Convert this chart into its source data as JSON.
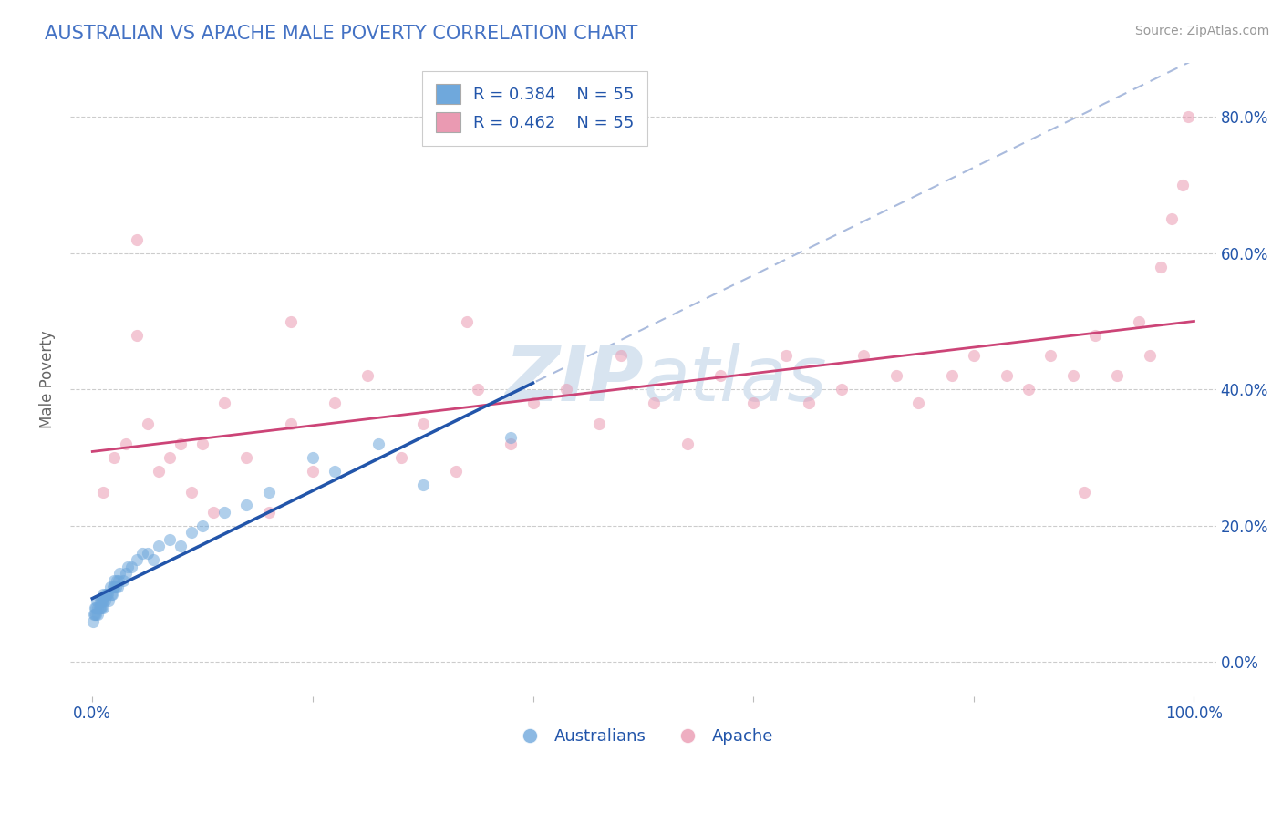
{
  "title": "AUSTRALIAN VS APACHE MALE POVERTY CORRELATION CHART",
  "source": "Source: ZipAtlas.com",
  "ylabel": "Male Poverty",
  "x_ticks": [
    0.0,
    20.0,
    40.0,
    60.0,
    80.0,
    100.0
  ],
  "x_tick_labels": [
    "0.0%",
    "",
    "",
    "",
    "",
    "100.0%"
  ],
  "y_ticks": [
    0.0,
    0.2,
    0.4,
    0.6,
    0.8
  ],
  "y_tick_labels_right": [
    "0.0%",
    "20.0%",
    "40.0%",
    "60.0%",
    "80.0%"
  ],
  "xlim": [
    -2,
    102
  ],
  "ylim": [
    -0.05,
    0.88
  ],
  "grid_color": "#cccccc",
  "background_color": "#ffffff",
  "title_color": "#4472c4",
  "title_fontsize": 15,
  "watermark_zip": "ZIP",
  "watermark_atlas": "atlas",
  "watermark_color": "#d8e4f0",
  "legend_R_blue": "R = 0.384",
  "legend_N_blue": "N = 55",
  "legend_R_pink": "R = 0.462",
  "legend_N_pink": "N = 55",
  "legend_label_blue": "Australians",
  "legend_label_pink": "Apache",
  "blue_color": "#6fa8dc",
  "pink_color": "#ea9ab2",
  "blue_line_color": "#2255aa",
  "pink_line_color": "#cc4477",
  "dash_line_color": "#aabbdd",
  "dot_alpha": 0.55,
  "dot_size": 90,
  "australians_x": [
    0.1,
    0.15,
    0.2,
    0.25,
    0.3,
    0.35,
    0.4,
    0.5,
    0.5,
    0.6,
    0.7,
    0.7,
    0.8,
    0.8,
    0.9,
    1.0,
    1.0,
    1.0,
    1.1,
    1.2,
    1.3,
    1.4,
    1.5,
    1.6,
    1.7,
    1.8,
    1.9,
    2.0,
    2.0,
    2.1,
    2.2,
    2.3,
    2.4,
    2.5,
    2.8,
    3.0,
    3.2,
    3.5,
    4.0,
    4.5,
    5.0,
    5.5,
    6.0,
    7.0,
    8.0,
    9.0,
    10.0,
    12.0,
    14.0,
    16.0,
    20.0,
    22.0,
    26.0,
    30.0,
    38.0
  ],
  "australians_y": [
    0.06,
    0.07,
    0.08,
    0.07,
    0.08,
    0.07,
    0.09,
    0.07,
    0.08,
    0.08,
    0.09,
    0.08,
    0.09,
    0.08,
    0.09,
    0.08,
    0.09,
    0.1,
    0.09,
    0.1,
    0.1,
    0.1,
    0.09,
    0.11,
    0.1,
    0.1,
    0.11,
    0.11,
    0.12,
    0.11,
    0.12,
    0.11,
    0.12,
    0.13,
    0.12,
    0.13,
    0.14,
    0.14,
    0.15,
    0.16,
    0.16,
    0.15,
    0.17,
    0.18,
    0.17,
    0.19,
    0.2,
    0.22,
    0.23,
    0.25,
    0.3,
    0.28,
    0.32,
    0.26,
    0.33
  ],
  "apache_x": [
    1.0,
    2.0,
    3.0,
    4.0,
    5.0,
    6.0,
    7.0,
    8.0,
    9.0,
    10.0,
    11.0,
    12.0,
    14.0,
    16.0,
    18.0,
    20.0,
    22.0,
    25.0,
    28.0,
    30.0,
    33.0,
    35.0,
    38.0,
    40.0,
    43.0,
    46.0,
    48.0,
    51.0,
    54.0,
    57.0,
    60.0,
    63.0,
    65.0,
    68.0,
    70.0,
    73.0,
    75.0,
    78.0,
    80.0,
    83.0,
    85.0,
    87.0,
    89.0,
    91.0,
    93.0,
    95.0,
    96.0,
    97.0,
    98.0,
    99.0,
    99.5,
    4.0,
    18.0,
    34.0,
    90.0
  ],
  "apache_y": [
    0.25,
    0.3,
    0.32,
    0.48,
    0.35,
    0.28,
    0.3,
    0.32,
    0.25,
    0.32,
    0.22,
    0.38,
    0.3,
    0.22,
    0.35,
    0.28,
    0.38,
    0.42,
    0.3,
    0.35,
    0.28,
    0.4,
    0.32,
    0.38,
    0.4,
    0.35,
    0.45,
    0.38,
    0.32,
    0.42,
    0.38,
    0.45,
    0.38,
    0.4,
    0.45,
    0.42,
    0.38,
    0.42,
    0.45,
    0.42,
    0.4,
    0.45,
    0.42,
    0.48,
    0.42,
    0.5,
    0.45,
    0.58,
    0.65,
    0.7,
    0.8,
    0.62,
    0.5,
    0.5,
    0.25
  ],
  "figsize": [
    14.06,
    8.92
  ],
  "dpi": 100
}
